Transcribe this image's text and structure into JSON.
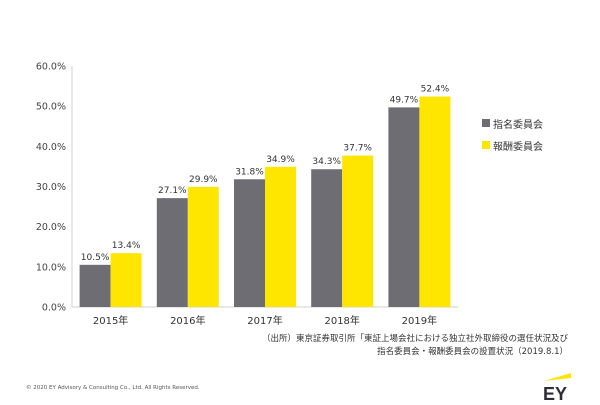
{
  "chart_data": {
    "type": "bar",
    "categories": [
      "2015年",
      "2016年",
      "2017年",
      "2018年",
      "2019年"
    ],
    "series": [
      {
        "name": "指名委員会",
        "color": "#6d6d73",
        "values": [
          10.5,
          27.1,
          31.8,
          34.3,
          49.7
        ],
        "labels": [
          "10.5%",
          "27.1%",
          "31.8%",
          "34.3%",
          "49.7%"
        ]
      },
      {
        "name": "報酬委員会",
        "color": "#ffe600",
        "values": [
          13.4,
          29.9,
          34.9,
          37.7,
          52.4
        ],
        "labels": [
          "13.4%",
          "29.9%",
          "34.9%",
          "37.7%",
          "52.4%"
        ]
      }
    ],
    "ylim": [
      0,
      60
    ],
    "yticks": [
      0,
      10,
      20,
      30,
      40,
      50,
      60
    ],
    "ytick_labels": [
      "0.0%",
      "10.0%",
      "20.0%",
      "30.0%",
      "40.0%",
      "50.0%",
      "60.0%"
    ],
    "grid": false,
    "legend_position": "right"
  },
  "source_line1": "（出所）東京証券取引所「東証上場会社における独立社外取締役の選任状況及び",
  "source_line2": "指名委員会・報酬委員会の設置状況（2019.8.1）",
  "copyright": "© 2020 EY Advisory & Consulting Co., Ltd. All Rights Reserved.",
  "logo_text": "EY"
}
